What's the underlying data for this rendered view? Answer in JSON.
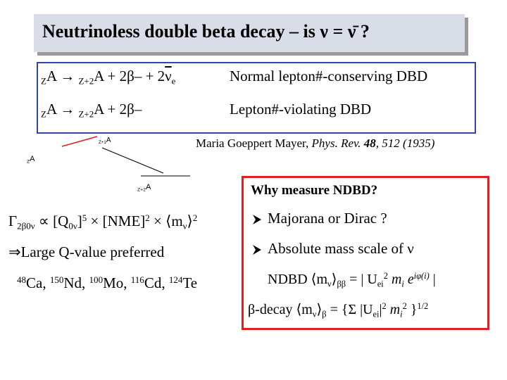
{
  "title": "Neutrinoless double beta decay – is ν = ν̄ ?",
  "box": {
    "rows": [
      {
        "formula": [
          "Z",
          "A → ",
          "Z+2",
          "A + 2β– + 2",
          "ν",
          "e"
        ],
        "description": "Normal lepton#-conserving DBD"
      },
      {
        "formula": [
          "Z",
          "A → ",
          "Z+2",
          "A + 2β–"
        ],
        "description": "Lepton#-violating DBD"
      }
    ]
  },
  "citation": {
    "author": "Maria Goeppert Mayer, ",
    "journal": "Phys. Rev. ",
    "volume": "48",
    "pages": ", 512 (1935)"
  },
  "diagram": {
    "labels": [
      [
        "Z+1",
        "A"
      ],
      [
        "Z",
        "A"
      ],
      [
        "Z+2",
        "A"
      ]
    ]
  },
  "rate": [
    "Γ",
    "2β0ν",
    " ∝ [Q",
    "0ν",
    "]",
    "5",
    " × [NME]",
    "2",
    " × ⟨m",
    "ν",
    "⟩",
    "2"
  ],
  "preference": "⇒Large Q-value preferred",
  "isotopes": [
    {
      "mass": "48",
      "symbol": "Ca, "
    },
    {
      "mass": "150",
      "symbol": "Nd, "
    },
    {
      "mass": "100",
      "symbol": "Mo, "
    },
    {
      "mass": "116",
      "symbol": "Cd, "
    },
    {
      "mass": "124",
      "symbol": "Te"
    }
  ],
  "why": {
    "heading": "Why measure NDBD?",
    "bullets": [
      "Majorana or Dirac ?",
      "Absolute mass scale of ν"
    ],
    "ndbd": [
      "NDBD ⟨m",
      "ν",
      "⟩",
      "ββ",
      " = | U",
      "ei",
      "2",
      " m",
      "i",
      " e",
      "iφ(i)",
      " |"
    ],
    "beta": [
      "β-decay ⟨m",
      "ν",
      "⟩",
      "β",
      " = {Σ |U",
      "ei",
      "|",
      "2",
      " m",
      "i",
      "2",
      " }",
      "1/2"
    ]
  }
}
